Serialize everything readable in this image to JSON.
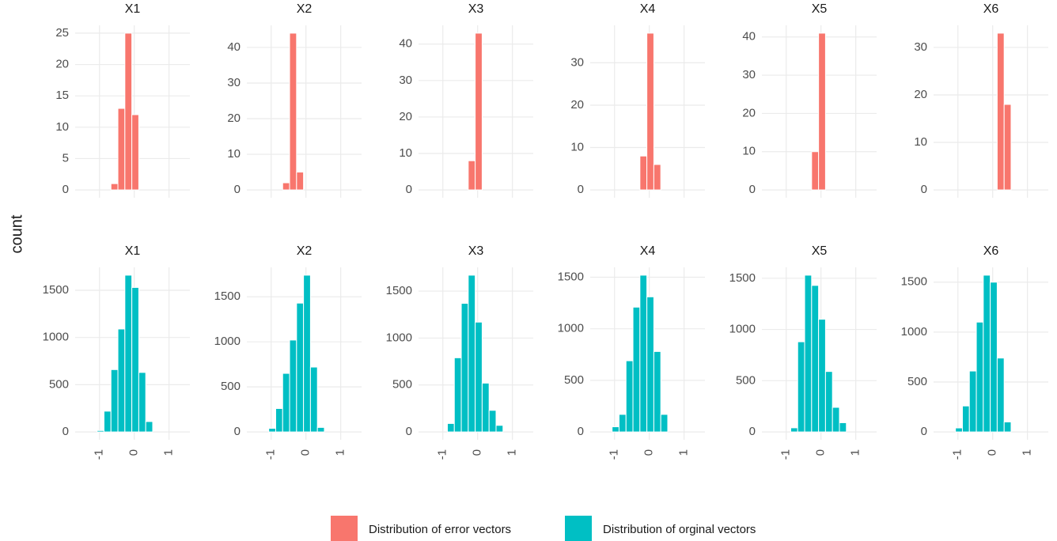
{
  "y_label": "count",
  "legend_position": "bottom",
  "legend": [
    {
      "name": "Distribution of error vectors",
      "color": "#F8766D"
    },
    {
      "name": "Distribution of orginal vectors",
      "color": "#00BFC4"
    }
  ],
  "chart_data": [
    {
      "type": "histogram",
      "title": "X1",
      "color": "#F8766D",
      "bins": [
        -0.67,
        -0.47,
        -0.27,
        -0.07,
        0.13
      ],
      "values": [
        1,
        13,
        25,
        12
      ],
      "xlim": [
        -1.7,
        1.6
      ],
      "xticks": [
        -1,
        0,
        1
      ],
      "ylim": [
        -1.25,
        26.25
      ],
      "yticks": [
        0,
        5,
        10,
        15,
        20,
        25
      ],
      "grid": true,
      "show_x_tick_labels": false
    },
    {
      "type": "histogram",
      "title": "X2",
      "color": "#F8766D",
      "bins": [
        -0.67,
        -0.47,
        -0.27,
        -0.07
      ],
      "values": [
        2,
        44,
        5
      ],
      "xlim": [
        -1.7,
        1.6
      ],
      "xticks": [
        -1,
        0,
        1
      ],
      "ylim": [
        -2.2,
        46.2
      ],
      "yticks": [
        0,
        10,
        20,
        30,
        40
      ],
      "grid": true,
      "show_x_tick_labels": false
    },
    {
      "type": "histogram",
      "title": "X3",
      "color": "#F8766D",
      "bins": [
        -0.27,
        -0.07,
        0.13
      ],
      "values": [
        8,
        43
      ],
      "xlim": [
        -1.7,
        1.6
      ],
      "xticks": [
        -1,
        0,
        1
      ],
      "ylim": [
        -2.15,
        45.15
      ],
      "yticks": [
        0,
        10,
        20,
        30,
        40
      ],
      "grid": true,
      "show_x_tick_labels": false
    },
    {
      "type": "histogram",
      "title": "X4",
      "color": "#F8766D",
      "bins": [
        -0.27,
        -0.07,
        0.13,
        0.33
      ],
      "values": [
        8,
        37,
        6
      ],
      "xlim": [
        -1.7,
        1.6
      ],
      "xticks": [
        -1,
        0,
        1
      ],
      "ylim": [
        -1.85,
        38.85
      ],
      "yticks": [
        0,
        10,
        20,
        30
      ],
      "grid": true,
      "show_x_tick_labels": false
    },
    {
      "type": "histogram",
      "title": "X5",
      "color": "#F8766D",
      "bins": [
        -0.27,
        -0.07,
        0.13
      ],
      "values": [
        10,
        41
      ],
      "xlim": [
        -1.7,
        1.6
      ],
      "xticks": [
        -1,
        0,
        1
      ],
      "ylim": [
        -2.05,
        43.05
      ],
      "yticks": [
        0,
        10,
        20,
        30,
        40
      ],
      "grid": true,
      "show_x_tick_labels": false
    },
    {
      "type": "histogram",
      "title": "X6",
      "color": "#F8766D",
      "bins": [
        0.13,
        0.33,
        0.53
      ],
      "values": [
        33,
        18
      ],
      "xlim": [
        -1.7,
        1.6
      ],
      "xticks": [
        -1,
        0,
        1
      ],
      "ylim": [
        -1.65,
        34.65
      ],
      "yticks": [
        0,
        10,
        20,
        30
      ],
      "grid": true,
      "show_x_tick_labels": false
    },
    {
      "type": "histogram",
      "title": "X1",
      "color": "#00BFC4",
      "bins": [
        -1.07,
        -0.87,
        -0.67,
        -0.47,
        -0.27,
        -0.07,
        0.13,
        0.33,
        0.53
      ],
      "values": [
        15,
        220,
        660,
        1090,
        1660,
        1530,
        630,
        110
      ],
      "xlim": [
        -1.7,
        1.6
      ],
      "xticks": [
        -1,
        0,
        1
      ],
      "ylim": [
        -83,
        1743
      ],
      "yticks": [
        0,
        500,
        1000,
        1500
      ],
      "grid": true,
      "show_x_tick_labels": true
    },
    {
      "type": "histogram",
      "title": "X2",
      "color": "#00BFC4",
      "bins": [
        -1.07,
        -0.87,
        -0.67,
        -0.47,
        -0.27,
        -0.07,
        0.13,
        0.33,
        0.53
      ],
      "values": [
        40,
        260,
        650,
        1020,
        1430,
        1740,
        720,
        50
      ],
      "xlim": [
        -1.7,
        1.6
      ],
      "xticks": [
        -1,
        0,
        1
      ],
      "ylim": [
        -87,
        1827
      ],
      "yticks": [
        0,
        500,
        1000,
        1500
      ],
      "grid": true,
      "show_x_tick_labels": true
    },
    {
      "type": "histogram",
      "title": "X3",
      "color": "#00BFC4",
      "bins": [
        -0.87,
        -0.67,
        -0.47,
        -0.27,
        -0.07,
        0.13,
        0.33,
        0.53,
        0.73
      ],
      "values": [
        90,
        790,
        1370,
        1670,
        1170,
        520,
        230,
        70
      ],
      "xlim": [
        -1.7,
        1.6
      ],
      "xticks": [
        -1,
        0,
        1
      ],
      "ylim": [
        -83.5,
        1753.5
      ],
      "yticks": [
        0,
        500,
        1000,
        1500
      ],
      "grid": true,
      "show_x_tick_labels": true
    },
    {
      "type": "histogram",
      "title": "X4",
      "color": "#00BFC4",
      "bins": [
        -1.07,
        -0.87,
        -0.67,
        -0.47,
        -0.27,
        -0.07,
        0.13,
        0.33,
        0.53
      ],
      "values": [
        50,
        170,
        690,
        1210,
        1520,
        1310,
        780,
        170
      ],
      "xlim": [
        -1.7,
        1.6
      ],
      "xticks": [
        -1,
        0,
        1
      ],
      "ylim": [
        -76,
        1596
      ],
      "yticks": [
        0,
        500,
        1000,
        1500
      ],
      "grid": true,
      "show_x_tick_labels": true
    },
    {
      "type": "histogram",
      "title": "X5",
      "color": "#00BFC4",
      "bins": [
        -0.87,
        -0.67,
        -0.47,
        -0.27,
        -0.07,
        0.13,
        0.33,
        0.53,
        0.73
      ],
      "values": [
        40,
        880,
        1530,
        1430,
        1100,
        590,
        240,
        90
      ],
      "xlim": [
        -1.7,
        1.6
      ],
      "xticks": [
        -1,
        0,
        1
      ],
      "ylim": [
        -76.5,
        1606.5
      ],
      "yticks": [
        0,
        500,
        1000,
        1500
      ],
      "grid": true,
      "show_x_tick_labels": true
    },
    {
      "type": "histogram",
      "title": "X6",
      "color": "#00BFC4",
      "bins": [
        -1.07,
        -0.87,
        -0.67,
        -0.47,
        -0.27,
        -0.07,
        0.13,
        0.33,
        0.53
      ],
      "values": [
        40,
        260,
        610,
        1100,
        1570,
        1500,
        740,
        100
      ],
      "xlim": [
        -1.7,
        1.6
      ],
      "xticks": [
        -1,
        0,
        1
      ],
      "ylim": [
        -78.5,
        1648.5
      ],
      "yticks": [
        0,
        500,
        1000,
        1500
      ],
      "grid": true,
      "show_x_tick_labels": true
    }
  ]
}
